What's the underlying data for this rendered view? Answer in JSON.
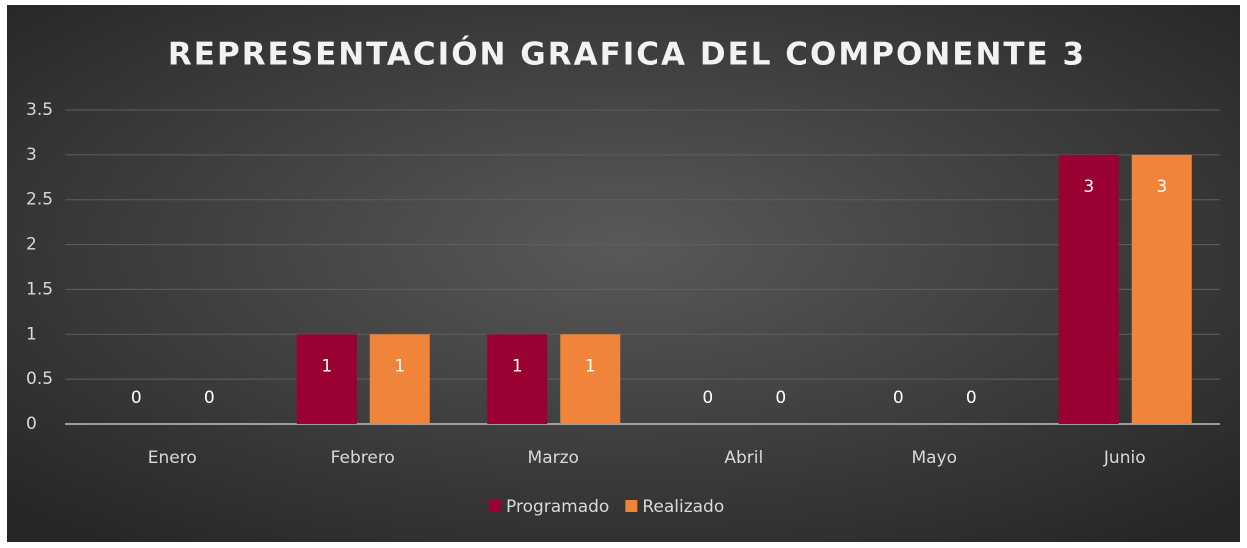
{
  "chart_data": {
    "type": "bar",
    "title": "REPRESENTACIÓN GRAFICA DEL COMPONENTE 3",
    "categories": [
      "Enero",
      "Febrero",
      "Marzo",
      "Abril",
      "Mayo",
      "Junio"
    ],
    "series": [
      {
        "name": "Programado",
        "color": "#9b0033",
        "values": [
          0,
          1,
          1,
          0,
          0,
          3
        ]
      },
      {
        "name": "Realizado",
        "color": "#f0843a",
        "values": [
          0,
          1,
          1,
          0,
          0,
          3
        ]
      }
    ],
    "ylim": [
      0,
      3.5
    ],
    "yticks": [
      0,
      0.5,
      1,
      1.5,
      2,
      2.5,
      3,
      3.5
    ],
    "grid": true,
    "legend": "bottom"
  }
}
